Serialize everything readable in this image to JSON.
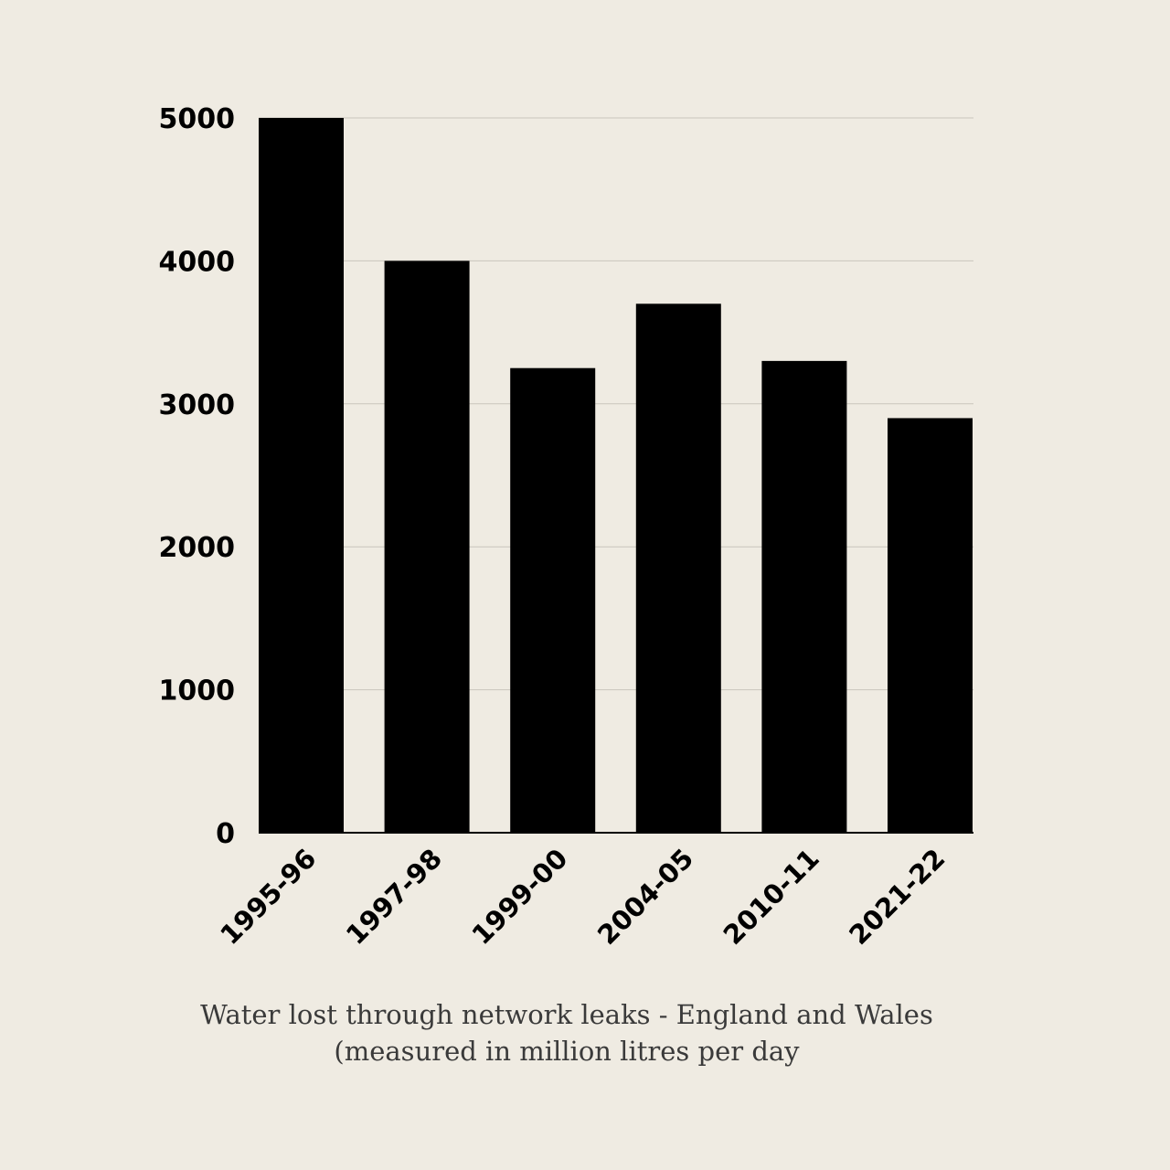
{
  "chart_data": {
    "type": "bar",
    "categories": [
      "1995-96",
      "1997-98",
      "1999-00",
      "2004-05",
      "2010-11",
      "2021-22"
    ],
    "values": [
      5000,
      4000,
      3250,
      3700,
      3300,
      2900
    ],
    "ylim": [
      0,
      5000
    ],
    "yticks": [
      0,
      1000,
      2000,
      3000,
      4000,
      5000
    ],
    "grid": true,
    "xlabel": "",
    "ylabel": "",
    "caption_line1": "Water lost through network leaks - England and Wales",
    "caption_line2": "(measured in million litres per day",
    "colors": {
      "bar": "#000000",
      "background": "#efebe2",
      "grid": "#c9c5bc"
    }
  }
}
